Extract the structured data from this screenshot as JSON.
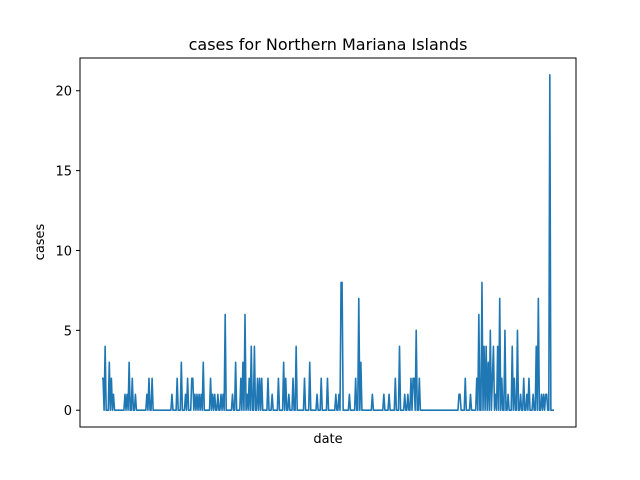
{
  "chart_data": {
    "type": "line",
    "title": "cases for Northern Mariana Islands",
    "xlabel": "date",
    "ylabel": "cases",
    "ylim": [
      -1.05,
      22.05
    ],
    "yticks": [
      0,
      5,
      10,
      15,
      20
    ],
    "xticks_visible": false,
    "grid": false,
    "series": [
      {
        "color": "#1f77b4",
        "values": [
          2,
          2,
          0,
          4,
          0,
          0,
          0,
          3,
          0,
          2,
          0,
          1,
          0,
          0,
          0,
          0,
          0,
          0,
          0,
          0,
          0,
          0,
          1,
          0,
          1,
          0,
          3,
          0,
          0,
          2,
          0,
          0,
          1,
          0,
          0,
          0,
          0,
          0,
          0,
          0,
          0,
          0,
          0,
          1,
          0,
          2,
          0,
          0,
          2,
          0,
          0,
          0,
          0,
          0,
          0,
          0,
          0,
          0,
          0,
          0,
          0,
          0,
          0,
          0,
          0,
          0,
          0,
          1,
          0,
          0,
          0,
          0,
          2,
          0,
          0,
          0,
          3,
          0,
          0,
          0,
          1,
          0,
          2,
          0,
          0,
          0,
          2,
          2,
          0,
          1,
          0,
          1,
          0,
          1,
          0,
          1,
          0,
          3,
          0,
          0,
          0,
          0,
          0,
          0,
          2,
          0,
          1,
          0,
          1,
          0,
          0,
          1,
          0,
          0,
          1,
          0,
          1,
          0,
          6,
          0,
          0,
          0,
          0,
          0,
          0,
          1,
          0,
          0,
          3,
          0,
          0,
          0,
          0,
          2,
          0,
          3,
          0,
          6,
          0,
          1,
          0,
          2,
          0,
          4,
          0,
          0,
          4,
          0,
          0,
          2,
          0,
          2,
          0,
          2,
          0,
          0,
          0,
          0,
          0,
          2,
          0,
          0,
          0,
          1,
          0,
          0,
          0,
          0,
          0,
          2,
          0,
          0,
          0,
          0,
          3,
          0,
          2,
          0,
          0,
          1,
          0,
          0,
          0,
          2,
          0,
          0,
          4,
          0,
          0,
          0,
          0,
          0,
          0,
          0,
          2,
          0,
          0,
          0,
          0,
          3,
          0,
          0,
          0,
          0,
          0,
          0,
          1,
          0,
          0,
          0,
          2,
          0,
          0,
          0,
          0,
          0,
          2,
          0,
          0,
          0,
          0,
          0,
          0,
          0,
          1,
          0,
          0,
          1,
          0,
          8,
          8,
          0,
          0,
          0,
          0,
          0,
          0,
          1,
          0,
          0,
          0,
          0,
          0,
          2,
          0,
          0,
          7,
          0,
          3,
          0,
          0,
          0,
          0,
          0,
          0,
          0,
          0,
          0,
          0,
          1,
          0,
          0,
          0,
          0,
          0,
          0,
          0,
          0,
          0,
          0,
          1,
          0,
          0,
          0,
          0,
          1,
          0,
          0,
          0,
          0,
          0,
          2,
          0,
          0,
          0,
          4,
          0,
          0,
          0,
          0,
          1,
          0,
          0,
          1,
          0,
          0,
          2,
          0,
          2,
          2,
          0,
          5,
          0,
          0,
          2,
          0,
          0,
          0,
          0,
          0,
          0,
          0,
          0,
          0,
          0,
          0,
          0,
          0,
          0,
          0,
          0,
          0,
          0,
          0,
          0,
          0,
          0,
          0,
          0,
          0,
          0,
          0,
          0,
          0,
          0,
          0,
          0,
          0,
          0,
          0,
          0,
          0,
          1,
          1,
          0,
          0,
          0,
          0,
          2,
          0,
          0,
          0,
          0,
          1,
          0,
          0,
          0,
          0,
          0,
          2,
          0,
          6,
          0,
          0,
          8,
          0,
          4,
          0,
          4,
          0,
          3,
          0,
          5,
          0,
          2,
          4,
          0,
          1,
          0,
          4,
          0,
          7,
          0,
          2,
          0,
          0,
          5,
          0,
          0,
          1,
          0,
          0,
          0,
          4,
          0,
          2,
          0,
          0,
          5,
          0,
          0,
          1,
          0,
          0,
          2,
          0,
          0,
          1,
          0,
          2,
          0,
          0,
          0,
          1,
          0,
          0,
          4,
          0,
          7,
          0,
          0,
          1,
          0,
          1,
          0,
          1,
          1,
          0,
          0,
          21,
          0,
          0,
          0,
          0
        ]
      }
    ]
  }
}
